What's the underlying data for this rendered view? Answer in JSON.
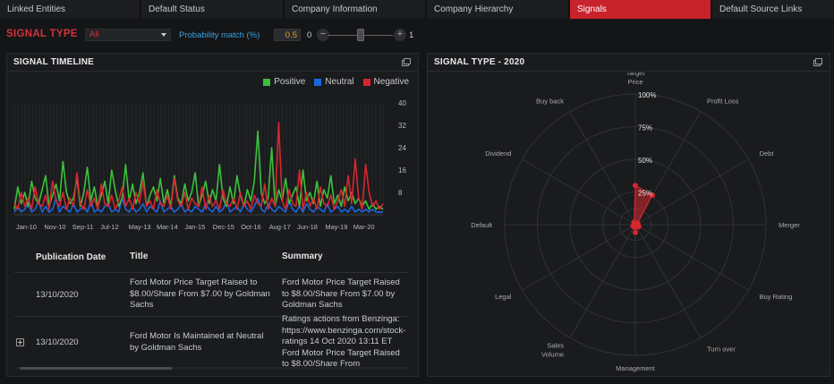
{
  "tabs": [
    {
      "label": "Linked Entities",
      "active": false
    },
    {
      "label": "Default Status",
      "active": false
    },
    {
      "label": "Company Information",
      "active": false
    },
    {
      "label": "Company Hierarchy",
      "active": false
    },
    {
      "label": "Signals",
      "active": true
    },
    {
      "label": "Default Source Links",
      "active": false
    }
  ],
  "filter": {
    "signal_type_label": "SIGNAL TYPE",
    "signal_type_value": "All",
    "probability_label": "Probability match (%)",
    "probability_value": "0.5",
    "slider_min": "0",
    "slider_max": "1",
    "minus": "−",
    "plus": "+"
  },
  "timeline": {
    "title": "SIGNAL TIMELINE",
    "legend": [
      {
        "label": "Positive",
        "color": "#3ac23a"
      },
      {
        "label": "Neutral",
        "color": "#1a66e0"
      },
      {
        "label": "Negative",
        "color": "#d8262e"
      }
    ],
    "chart_data": {
      "type": "line",
      "y_ticks": [
        "40",
        "32",
        "24",
        "16",
        "8"
      ],
      "ylim": [
        0,
        40
      ],
      "x_ticks": [
        "Jan-10",
        "Nov-10",
        "Sep-11",
        "Jul-12",
        "May-13",
        "Mar-14",
        "Jan-15",
        "Dec-15",
        "Oct-16",
        "Aug-17",
        "Jun-18",
        "May-19",
        "Mar-20"
      ],
      "series": [
        {
          "name": "Positive",
          "color": "#3ac23a",
          "values": [
            2,
            10,
            4,
            8,
            3,
            12,
            6,
            4,
            9,
            14,
            3,
            7,
            11,
            5,
            19,
            8,
            4,
            6,
            13,
            3,
            8,
            17,
            5,
            10,
            3,
            7,
            12,
            4,
            16,
            9,
            3,
            6,
            18,
            5,
            11,
            4,
            8,
            15,
            3,
            7,
            10,
            5,
            13,
            4,
            9,
            3,
            14,
            6,
            4,
            11,
            5,
            8,
            15,
            3,
            7,
            12,
            4,
            9,
            5,
            18,
            6,
            3,
            10,
            4,
            14,
            7,
            3,
            9,
            5,
            12,
            30,
            8,
            4,
            6,
            24,
            3,
            9,
            5,
            13,
            4,
            7,
            10,
            3,
            16,
            5,
            8,
            4,
            12,
            3,
            9,
            6,
            14,
            4,
            7,
            3,
            10,
            5,
            8,
            4,
            6,
            3,
            5,
            2,
            4,
            2,
            3,
            2
          ]
        },
        {
          "name": "Neutral",
          "color": "#1a66e0",
          "values": [
            1,
            3,
            1,
            2,
            4,
            1,
            2,
            5,
            1,
            3,
            1,
            2,
            6,
            1,
            3,
            2,
            1,
            4,
            1,
            2,
            3,
            1,
            5,
            1,
            2,
            1,
            3,
            4,
            1,
            2,
            1,
            6,
            2,
            1,
            3,
            1,
            2,
            4,
            1,
            3,
            2,
            1,
            5,
            1,
            2,
            3,
            1,
            2,
            4,
            1,
            2,
            1,
            3,
            2,
            1,
            4,
            2,
            1,
            3,
            1,
            2,
            5,
            1,
            2,
            3,
            1,
            4,
            2,
            1,
            3,
            6,
            2,
            1,
            4,
            2,
            1,
            3,
            2,
            1,
            5,
            2,
            1,
            3,
            1,
            4,
            2,
            1,
            3,
            2,
            1,
            4,
            1,
            2,
            3,
            1,
            2,
            1,
            3,
            1,
            2,
            1,
            2,
            1,
            2,
            1,
            1,
            1
          ]
        },
        {
          "name": "Negative",
          "color": "#d8262e",
          "values": [
            4,
            2,
            8,
            3,
            6,
            2,
            10,
            4,
            3,
            7,
            2,
            12,
            5,
            3,
            8,
            2,
            6,
            3,
            15,
            4,
            2,
            9,
            3,
            6,
            2,
            11,
            4,
            3,
            7,
            2,
            5,
            10,
            3,
            6,
            2,
            8,
            4,
            12,
            3,
            5,
            2,
            9,
            4,
            3,
            7,
            2,
            13,
            5,
            3,
            8,
            2,
            6,
            4,
            3,
            10,
            2,
            7,
            3,
            5,
            2,
            9,
            4,
            3,
            6,
            2,
            8,
            3,
            5,
            2,
            7,
            4,
            3,
            11,
            2,
            6,
            3,
            33,
            5,
            2,
            9,
            4,
            3,
            16,
            2,
            8,
            3,
            6,
            2,
            10,
            4,
            3,
            7,
            2,
            5,
            9,
            3,
            14,
            4,
            20,
            6,
            2,
            18,
            8,
            3,
            5,
            2,
            4
          ]
        }
      ]
    },
    "table": {
      "headers": {
        "date": "Publication Date",
        "title": "Title",
        "summary": "Summary"
      },
      "rows": [
        {
          "date": "13/10/2020",
          "title": "Ford Motor Price Target Raised to $8.00/Share From $7.00 by Goldman Sachs",
          "summary": "Ford Motor Price Target Raised to $8.00/Share From $7.00 by Goldman Sachs"
        },
        {
          "date": "13/10/2020",
          "title": "Ford Motor Is Maintained at Neutral by Goldman Sachs",
          "summary": "Ratings actions from Benzinga: https://www.benzinga.com/stock-ratings 14 Oct 2020 13:11 ET Ford Motor Price Target Raised to $8.00/Share From"
        }
      ]
    }
  },
  "radar": {
    "title": "SIGNAL TYPE - 2020",
    "chart_data": {
      "type": "radar",
      "categories": [
        "Target Price",
        "Profit Loss",
        "Debt",
        "Merger",
        "Buy Rating",
        "Turn over",
        "Management",
        "Sales Volume",
        "Legal",
        "Default",
        "Dividend",
        "Buy back"
      ],
      "ring_labels": [
        "25%",
        "50%",
        "75%",
        "100%"
      ],
      "rmax": 100,
      "values": [
        30,
        26,
        2,
        2,
        3,
        2,
        6,
        2,
        2,
        1,
        1,
        2
      ],
      "color": "#d8262e"
    }
  },
  "icons": {
    "expand": "expand-window-icon",
    "row_expand": "plus-square-icon",
    "caret": "chevron-down-icon"
  }
}
